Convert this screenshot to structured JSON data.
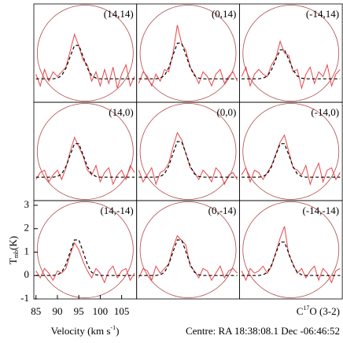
{
  "chart_data": {
    "type": "line",
    "x": [
      85,
      86,
      87,
      88,
      89,
      90,
      91,
      92,
      93,
      94,
      95,
      96,
      97,
      98,
      99,
      100,
      101,
      102,
      103,
      104,
      105,
      106,
      107,
      108
    ],
    "xlim": [
      84.5,
      108.5
    ],
    "xticks": [
      85,
      90,
      95,
      100,
      105
    ],
    "ylim": [
      -1,
      3.2
    ],
    "yticks": [
      -1,
      0,
      1,
      2,
      3
    ],
    "spectrum_color": "#e8464a",
    "fit_color": "#000000",
    "beam_color": "#b04a4a",
    "x_label": {
      "text": "Velocity (km s",
      "sup": "-1",
      "end": ")"
    },
    "y_label": {
      "text": "T",
      "sub": "mb",
      "end": "(K)"
    },
    "line_label": {
      "text": "C",
      "sup": "17",
      "end": "O (3-2)"
    },
    "centre": "Centre: RA 18:38:08.1 Dec -06:46:52",
    "panels": [
      {
        "label": "(14,14)",
        "spectrum": [
          0.2,
          -0.3,
          0.4,
          -0.1,
          0.3,
          0.1,
          0.3,
          0.5,
          1.2,
          1.9,
          1.4,
          0.8,
          0.6,
          -0.1,
          0.3,
          -0.3,
          0.4,
          -0.2,
          0.5,
          -0.4,
          0.2,
          0.6,
          -0.3,
          0.1
        ],
        "fit": [
          0,
          0,
          0,
          0,
          0,
          0.03,
          0.14,
          0.45,
          0.96,
          1.43,
          1.43,
          0.96,
          0.45,
          0.14,
          0.03,
          0,
          0,
          0,
          0,
          0,
          0,
          0,
          0,
          0
        ]
      },
      {
        "label": "(0,14)",
        "spectrum": [
          -0.2,
          0.3,
          0.1,
          -0.3,
          0.2,
          -0.1,
          0.4,
          0.3,
          1.1,
          2.3,
          1.5,
          1.2,
          0.5,
          0.2,
          -0.2,
          0.3,
          0.1,
          -0.3,
          0.2,
          0.4,
          -0.2,
          0.1,
          0.3,
          -0.1
        ],
        "fit": [
          0,
          0,
          0,
          0,
          0,
          0.03,
          0.14,
          0.48,
          1.02,
          1.52,
          1.52,
          1.02,
          0.48,
          0.14,
          0.03,
          0,
          0,
          0,
          0,
          0,
          0,
          0,
          0,
          0
        ]
      },
      {
        "label": "(-14,14)",
        "spectrum": [
          0.1,
          0.5,
          -0.3,
          0.2,
          0.4,
          0.2,
          0.1,
          0.6,
          0.9,
          1.6,
          1.1,
          1.0,
          0.3,
          0.4,
          -0.4,
          0.2,
          0.5,
          -0.2,
          0.3,
          0.1,
          0.6,
          -0.3,
          0.2,
          0.4
        ],
        "fit": [
          0,
          0,
          0,
          0,
          0,
          0.03,
          0.12,
          0.39,
          0.83,
          1.24,
          1.24,
          0.83,
          0.39,
          0.12,
          0.03,
          0,
          0,
          0,
          0,
          0,
          0,
          0,
          0,
          0
        ]
      },
      {
        "label": "(14,0)",
        "spectrum": [
          -0.1,
          0.2,
          0.3,
          -0.2,
          0.1,
          0.3,
          -0.1,
          0.4,
          1.1,
          1.7,
          1.3,
          0.9,
          0.3,
          0.1,
          0.5,
          -0.2,
          0.2,
          0.4,
          -0.3,
          0.1,
          0.3,
          -0.1,
          0.5,
          0.2
        ],
        "fit": [
          0,
          0,
          0,
          0,
          0,
          0.03,
          0.14,
          0.45,
          0.96,
          1.43,
          1.43,
          0.96,
          0.45,
          0.14,
          0.03,
          0,
          0,
          0,
          0,
          0,
          0,
          0,
          0,
          0
        ]
      },
      {
        "label": "(0,0)",
        "spectrum": [
          0.3,
          -0.2,
          0.1,
          0.4,
          -0.3,
          0.2,
          0.3,
          0.6,
          1.3,
          1.9,
          1.6,
          1.0,
          0.4,
          0.2,
          -0.1,
          0.3,
          0.1,
          -0.2,
          0.4,
          0.2,
          -0.3,
          0.1,
          0.2,
          -0.1
        ],
        "fit": [
          0,
          0,
          0,
          0,
          0,
          0.03,
          0.14,
          0.48,
          1.02,
          1.52,
          1.52,
          1.02,
          0.48,
          0.14,
          0.03,
          0,
          0,
          0,
          0,
          0,
          0,
          0,
          0,
          0
        ]
      },
      {
        "label": "(-14,0)",
        "spectrum": [
          0.1,
          0.4,
          -0.2,
          0.3,
          0.2,
          -0.1,
          0.2,
          0.5,
          1.0,
          1.5,
          1.8,
          1.1,
          0.4,
          0.3,
          0.1,
          0.5,
          -0.3,
          0.2,
          0.6,
          -0.2,
          0.3,
          0.4,
          -0.1,
          0.2
        ],
        "fit": [
          0,
          0,
          0,
          0,
          0,
          0.03,
          0.14,
          0.45,
          0.96,
          1.43,
          1.43,
          0.96,
          0.45,
          0.14,
          0.03,
          0,
          0,
          0,
          0,
          0,
          0,
          0,
          0,
          0
        ]
      },
      {
        "label": "(14,-14)",
        "spectrum": [
          0.2,
          -0.1,
          0.3,
          0.1,
          -0.2,
          0.2,
          0.1,
          0.3,
          0.9,
          1.4,
          1.1,
          0.6,
          0.2,
          -0.1,
          0.3,
          0.1,
          -0.3,
          0.2,
          0.4,
          -0.1,
          0.2,
          0.3,
          -0.2,
          0.1
        ],
        "fit": [
          0,
          0,
          0,
          0,
          0,
          0.03,
          0.14,
          0.48,
          1.02,
          1.52,
          1.52,
          1.02,
          0.48,
          0.14,
          0.03,
          0,
          0,
          0,
          0,
          0,
          0,
          0,
          0,
          0
        ]
      },
      {
        "label": "(0,-14)",
        "spectrum": [
          -0.1,
          0.3,
          0.2,
          -0.2,
          0.4,
          0.1,
          0.3,
          0.5,
          1.2,
          1.7,
          1.5,
          1.3,
          0.4,
          0.2,
          -0.1,
          0.3,
          0.2,
          -0.2,
          0.1,
          0.4,
          -0.1,
          0.2,
          0.3,
          0.1
        ],
        "fit": [
          0,
          0,
          0,
          0,
          0,
          0.03,
          0.14,
          0.48,
          1.02,
          1.52,
          1.52,
          1.02,
          0.48,
          0.14,
          0.03,
          0,
          0,
          0,
          0,
          0,
          0,
          0,
          0,
          0
        ]
      },
      {
        "label": "(-14,-14)",
        "spectrum": [
          0.2,
          -0.2,
          0.3,
          0.1,
          0.2,
          0.4,
          0.1,
          0.4,
          1.0,
          1.6,
          2.1,
          0.9,
          0.5,
          0.1,
          0.3,
          -0.1,
          0.2,
          0.4,
          -0.2,
          0.3,
          0.1,
          -0.3,
          0.2,
          0.3
        ],
        "fit": [
          0,
          0,
          0,
          0,
          0,
          0.03,
          0.14,
          0.45,
          0.96,
          1.43,
          1.43,
          0.96,
          0.45,
          0.14,
          0.03,
          0,
          0,
          0,
          0,
          0,
          0,
          0,
          0,
          0
        ]
      }
    ]
  }
}
